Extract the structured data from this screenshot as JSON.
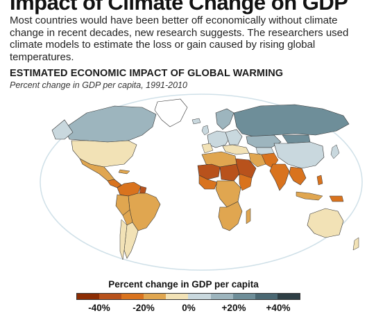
{
  "headline": "Impact of Climate Change on GDP",
  "dek": "Most countries would have been better off economically without climate change in recent decades, new research suggests. The researchers used climate models to estimate the loss or gain caused by rising global temperatures.",
  "map": {
    "title": "ESTIMATED ECONOMIC IMPACT OF GLOBAL WARMING",
    "subtitle": "Percent change in GDP per capita, 1991-2010",
    "ocean_color": "#ffffff",
    "outline_color": "#cfe0e8",
    "border_color": "#333333"
  },
  "legend": {
    "title": "Percent change in GDP per capita",
    "swatches": [
      "#8c2d04",
      "#b8521c",
      "#d9731e",
      "#e0a650",
      "#f2e2b6",
      "#c9d8de",
      "#9db5be",
      "#6e8e99",
      "#4a6873",
      "#2e3f45"
    ],
    "ticks": [
      "-40%",
      "-20%",
      "0%",
      "+20%",
      "+40%"
    ]
  }
}
